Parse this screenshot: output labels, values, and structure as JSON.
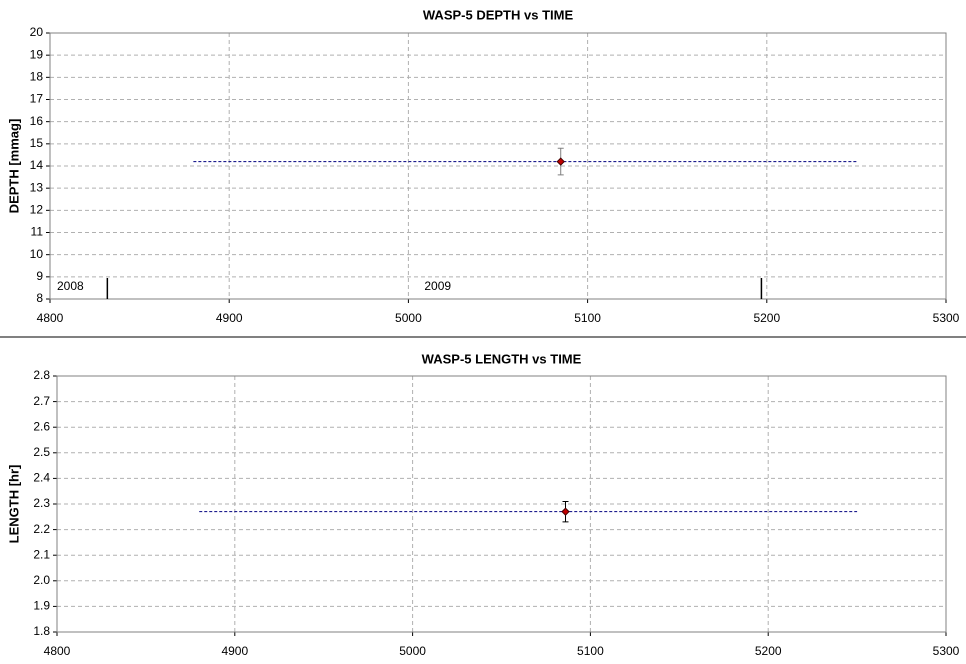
{
  "chart_data": [
    {
      "type": "scatter",
      "title": "WASP-5 DEPTH vs TIME",
      "y_label": "DEPTH [mmag]",
      "xlim": [
        4800,
        5300
      ],
      "xticks": [
        4800,
        4900,
        5000,
        5100,
        5200,
        5300
      ],
      "ylim": [
        8,
        20
      ],
      "yticks": [
        8,
        9,
        10,
        11,
        12,
        13,
        14,
        15,
        16,
        17,
        18,
        19,
        20
      ],
      "grid": true,
      "points": {
        "x": [
          5085
        ],
        "values": [
          14.2
        ],
        "errors": [
          0.6
        ],
        "color": "#c00000",
        "error_color": "#808080"
      },
      "mean_line": {
        "x": [
          4880,
          5250
        ],
        "values": [
          14.2,
          14.2
        ],
        "color": "#000080"
      },
      "year_lines": [
        4832,
        5197
      ],
      "year_labels": [
        "2008",
        "2009"
      ]
    },
    {
      "type": "scatter",
      "title": "WASP-5 LENGTH vs TIME",
      "y_label": "LENGTH [hr]",
      "xlim": [
        4800,
        5300
      ],
      "xticks": [
        4800,
        4900,
        5000,
        5100,
        5200,
        5300
      ],
      "ylim": [
        1.8,
        2.8
      ],
      "yticks": [
        1.8,
        1.9,
        {
          "value": 2,
          "label": "2.0"
        },
        2.1,
        2.2,
        2.3,
        2.4,
        2.5,
        2.6,
        2.7,
        2.8
      ],
      "grid": true,
      "points": {
        "x": [
          5086
        ],
        "values": [
          2.27
        ],
        "errors": [
          0.04
        ],
        "color": "#c00000",
        "error_color": "#000000"
      },
      "mean_line": {
        "x": [
          4880,
          5250
        ],
        "values": [
          2.27,
          2.27
        ],
        "color": "#000080"
      }
    }
  ]
}
